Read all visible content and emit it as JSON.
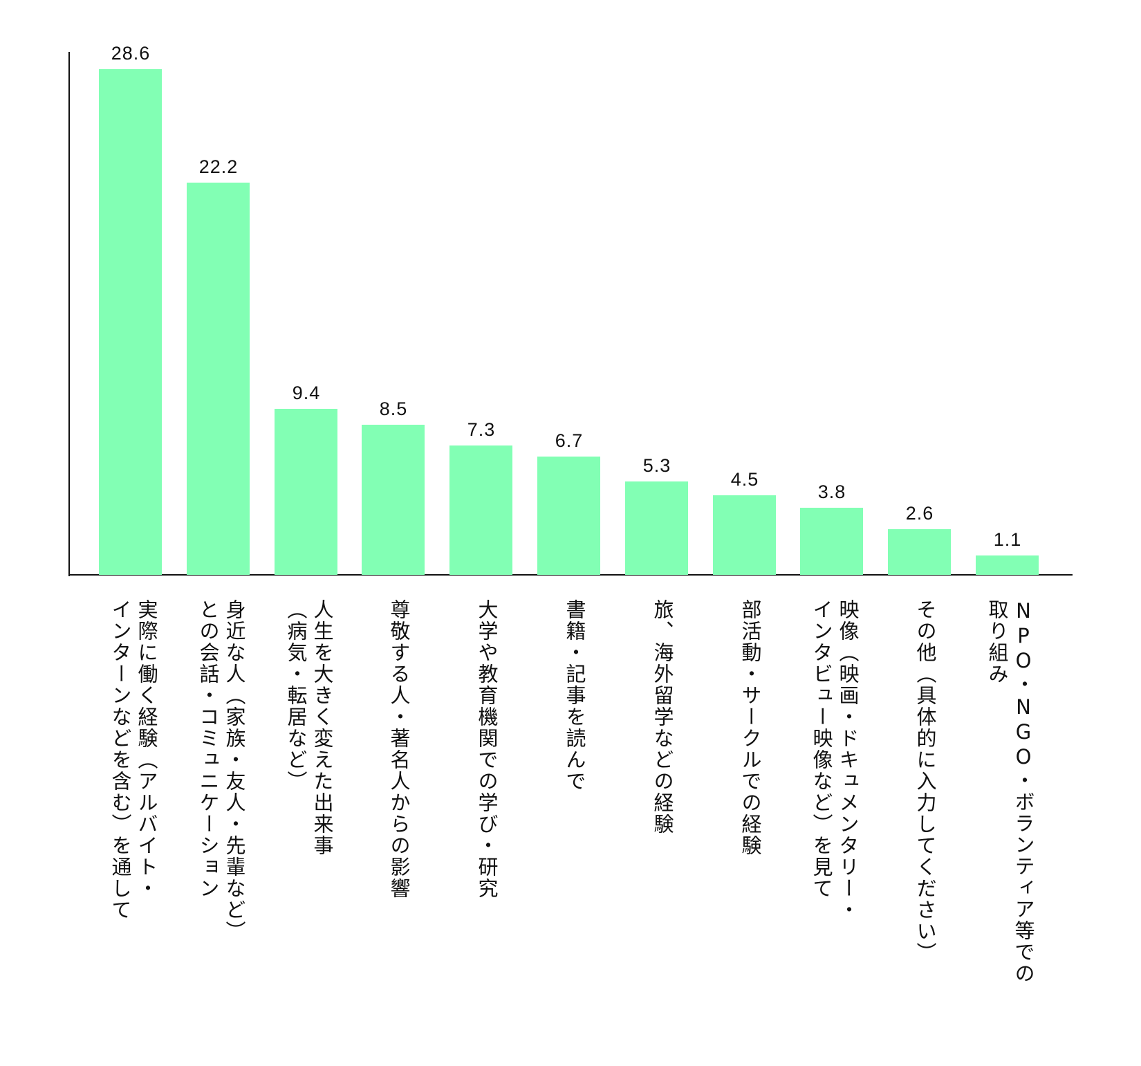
{
  "chart_data": {
    "type": "bar",
    "title": "",
    "xlabel": "",
    "ylabel": "",
    "ylim": [
      0,
      29.5
    ],
    "grid": false,
    "legend": null,
    "bar_color": "#82ffb4",
    "categories": [
      "実際に働く経験（アルバイト・インターンなどを含む）を通して",
      "身近な人（家族・友人・先輩など）との会話・コミュニケーション",
      "人生を大きく変えた出来事（病気・転居など）",
      "尊敬する人・著名人からの影響",
      "大学や教育機関での学び・研究",
      "書籍・記事を読んで",
      "旅、海外留学などの経験",
      "部活動・サークルでの経験",
      "映像（映画・ドキュメンタリー・インタビュー映像など）を見て",
      "その他（具体的に入力してください）",
      "NPO・NGO・ボランティア等での取り組み"
    ],
    "values": [
      28.6,
      22.2,
      9.4,
      8.5,
      7.3,
      6.7,
      5.3,
      4.5,
      3.8,
      2.6,
      1.1
    ],
    "value_labels": [
      "28.6",
      "22.2",
      "9.4",
      "8.5",
      "7.3",
      "6.7",
      "5.3",
      "4.5",
      "3.8",
      "2.6",
      "1.1"
    ],
    "label_lines": [
      [
        "実際に働く経験（アルバイト・",
        "インターンなどを含む）を通して"
      ],
      [
        "身近な人（家族・友人・先輩など）",
        "との会話・コミュニケーション"
      ],
      [
        "人生を大きく変えた出来事",
        "（病気・転居など）"
      ],
      [
        "尊敬する人・著名人からの影響"
      ],
      [
        "大学や教育機関での学び・研究"
      ],
      [
        "書籍・記事を読んで"
      ],
      [
        "旅、海外留学などの経験"
      ],
      [
        "部活動・サークルでの経験"
      ],
      [
        "映像（映画・ドキュメンタリー・",
        "インタビュー映像など）を見て"
      ],
      [
        "その他（具体的に入力してください）"
      ],
      [
        "NPO・NGO・ボランティア等での",
        "取り組み"
      ]
    ]
  }
}
